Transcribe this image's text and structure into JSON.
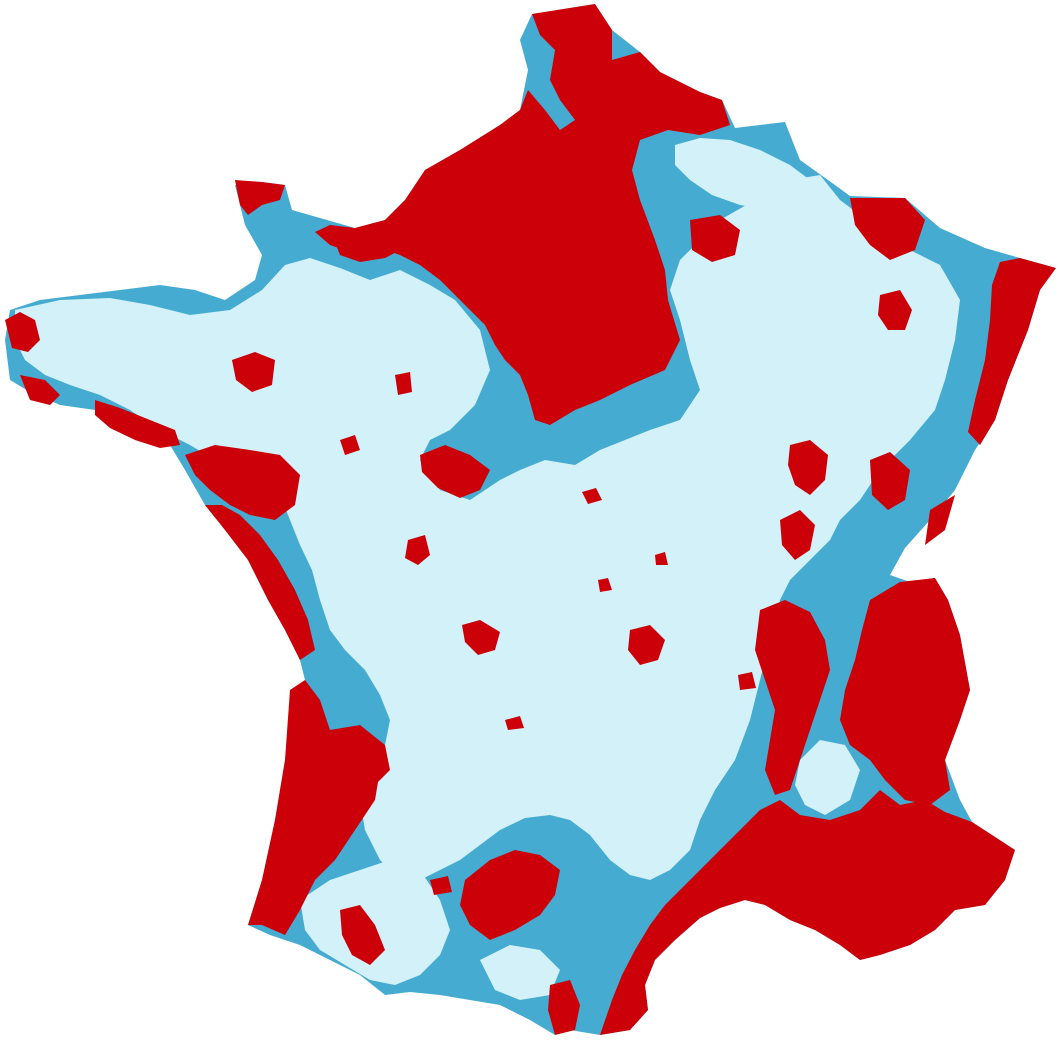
{
  "map": {
    "region": "France",
    "style": "choropleth",
    "background_color": "#ffffff",
    "categories": [
      {
        "key": "high",
        "color": "#cc0008"
      },
      {
        "key": "medium",
        "color": "#46abd0"
      },
      {
        "key": "low",
        "color": "#d3f1f9"
      }
    ]
  }
}
